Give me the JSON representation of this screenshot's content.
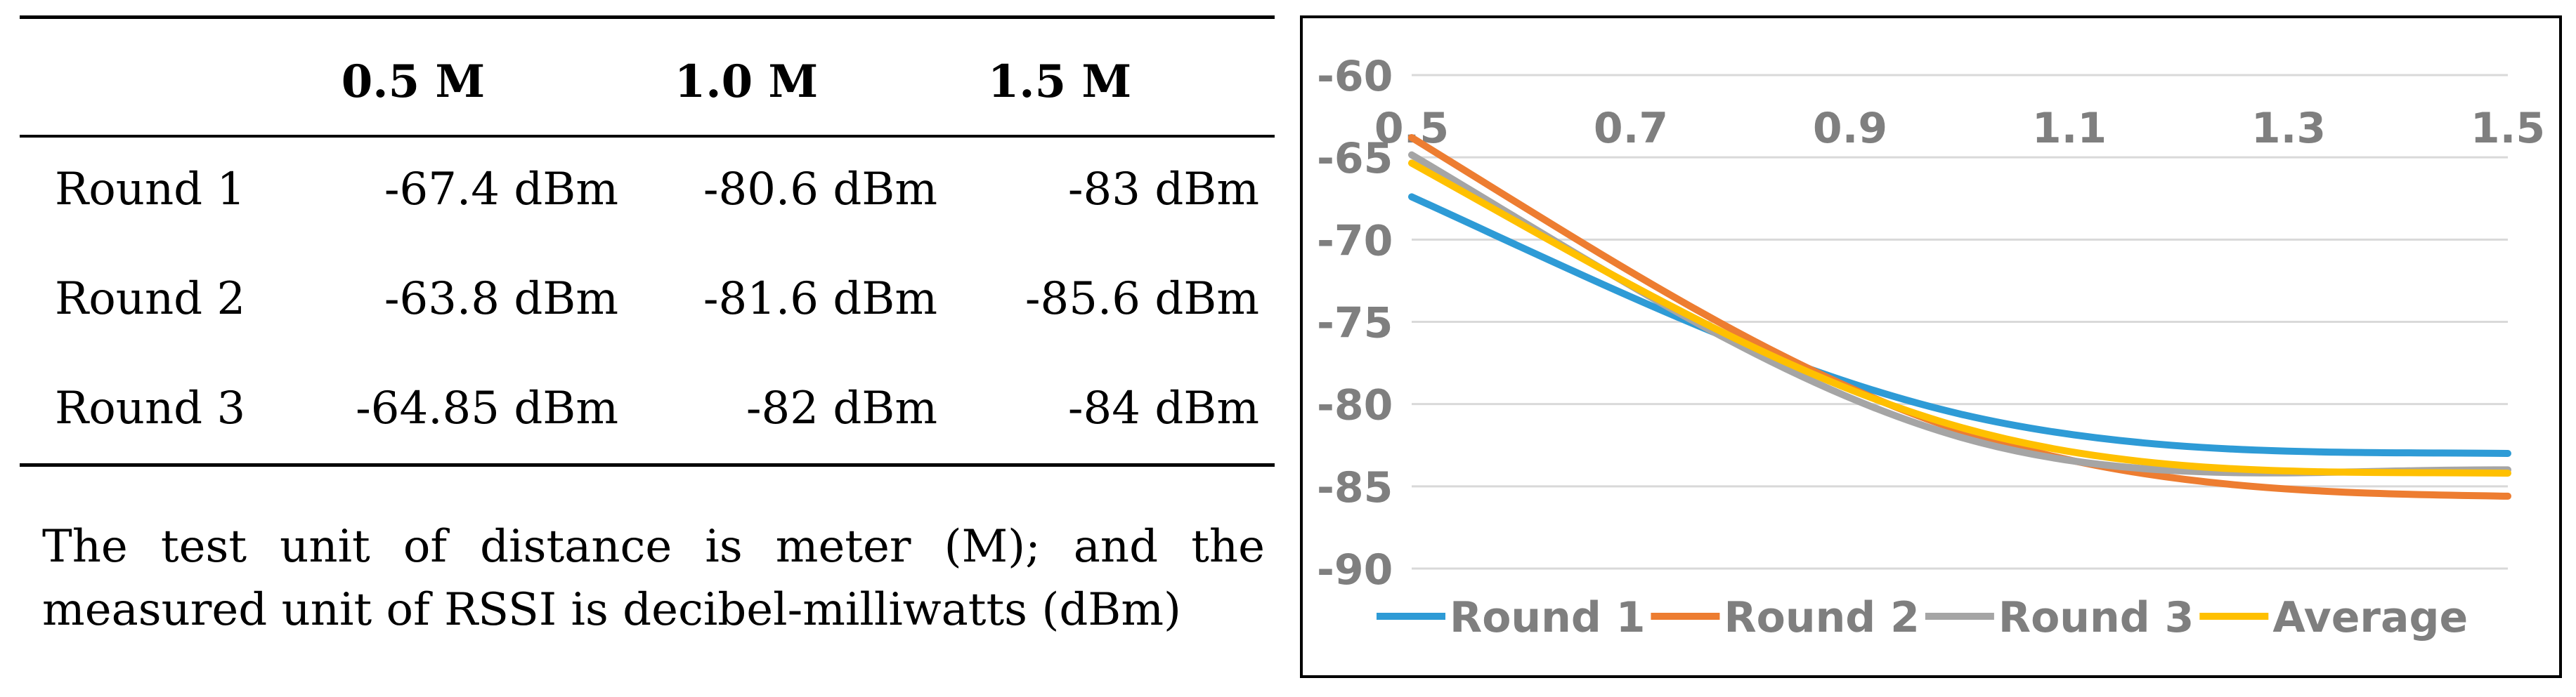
{
  "table": {
    "headers": [
      "",
      "0.5 M",
      "1.0 M",
      "1.5 M"
    ],
    "rows": [
      {
        "label": "Round 1",
        "values": [
          "-67.4 dBm",
          "-80.6 dBm",
          "-83 dBm"
        ]
      },
      {
        "label": "Round 2",
        "values": [
          "-63.8 dBm",
          "-81.6 dBm",
          "-85.6 dBm"
        ]
      },
      {
        "label": "Round 3",
        "values": [
          "-64.85 dBm",
          "-82 dBm",
          "-84 dBm"
        ]
      }
    ],
    "note": "The test unit of distance is meter (M); and the measured unit of RSSI is decibel-milliwatts (dBm)"
  },
  "chart_data": {
    "type": "line",
    "title": "",
    "xlabel": "",
    "ylabel": "",
    "x": [
      0.5,
      1.0,
      1.5
    ],
    "xlim": [
      0.5,
      1.5
    ],
    "ylim": [
      -90,
      -60
    ],
    "xticks": [
      "0.5",
      "0.7",
      "0.9",
      "1.1",
      "1.3",
      "1.5"
    ],
    "yticks": [
      "-60",
      "-65",
      "-70",
      "-75",
      "-80",
      "-85",
      "-90"
    ],
    "grid": true,
    "legend_position": "bottom",
    "series": [
      {
        "name": "Round 1",
        "values": [
          -67.4,
          -80.6,
          -83
        ],
        "color": "#2e9bd6"
      },
      {
        "name": "Round 2",
        "values": [
          -63.8,
          -81.6,
          -85.6
        ],
        "color": "#ed7d31"
      },
      {
        "name": "Round 3",
        "values": [
          -64.85,
          -82,
          -84
        ],
        "color": "#a5a5a5"
      },
      {
        "name": "Average",
        "values": [
          -65.35,
          -81.4,
          -84.2
        ],
        "color": "#ffc000"
      }
    ]
  }
}
